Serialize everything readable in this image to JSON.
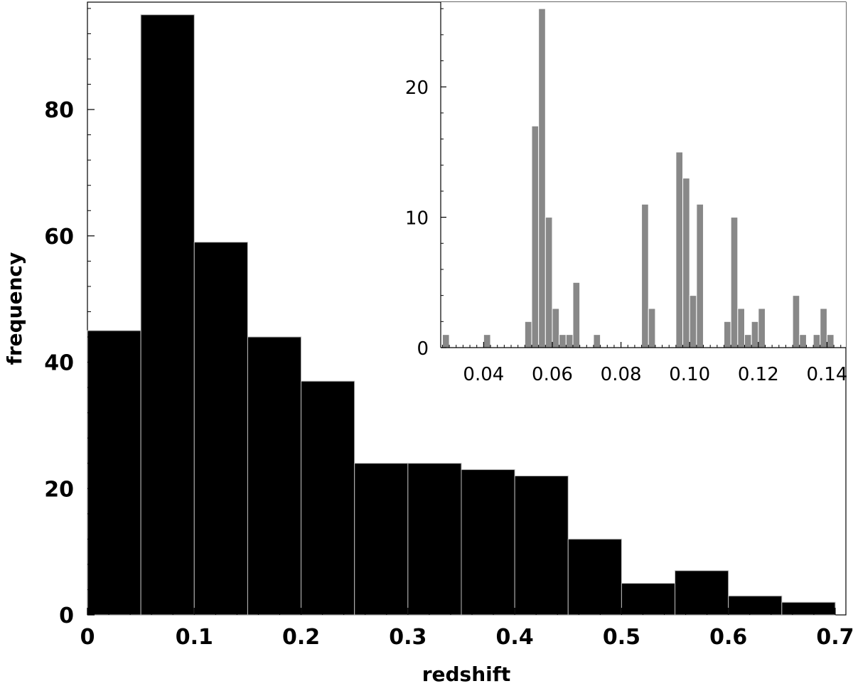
{
  "chart_data": [
    {
      "id": "main-histogram",
      "type": "bar",
      "title": "",
      "xlabel": "redshift",
      "ylabel": "frequency",
      "bin_edges": [
        0,
        0.05,
        0.1,
        0.15,
        0.2,
        0.25,
        0.3,
        0.35,
        0.4,
        0.45,
        0.5,
        0.55,
        0.6,
        0.65,
        0.7
      ],
      "values": [
        45,
        95,
        59,
        44,
        37,
        24,
        24,
        23,
        22,
        12,
        5,
        7,
        3,
        2
      ],
      "xlim": [
        0,
        0.71
      ],
      "ylim": [
        0,
        97
      ],
      "xticks": [
        0,
        0.1,
        0.2,
        0.3,
        0.4,
        0.5,
        0.6,
        0.7
      ],
      "xtick_labels": [
        "0",
        "0.1",
        "0.2",
        "0.3",
        "0.4",
        "0.5",
        "0.6",
        "0.7"
      ],
      "yticks": [
        0,
        20,
        40,
        60,
        80
      ],
      "ytick_labels": [
        "0",
        "20",
        "40",
        "60",
        "80"
      ],
      "bar_color": "#000000",
      "edge_color": "#bbbbbb"
    },
    {
      "id": "inset-histogram",
      "type": "bar",
      "title": "",
      "xlabel": "",
      "ylabel": "",
      "bin_width": 0.002,
      "bins": [
        {
          "x": 0.029,
          "value": 1
        },
        {
          "x": 0.041,
          "value": 1
        },
        {
          "x": 0.053,
          "value": 2
        },
        {
          "x": 0.055,
          "value": 17
        },
        {
          "x": 0.057,
          "value": 26
        },
        {
          "x": 0.059,
          "value": 10
        },
        {
          "x": 0.061,
          "value": 3
        },
        {
          "x": 0.063,
          "value": 1
        },
        {
          "x": 0.065,
          "value": 1
        },
        {
          "x": 0.067,
          "value": 5
        },
        {
          "x": 0.073,
          "value": 1
        },
        {
          "x": 0.087,
          "value": 11
        },
        {
          "x": 0.089,
          "value": 3
        },
        {
          "x": 0.097,
          "value": 15
        },
        {
          "x": 0.099,
          "value": 13
        },
        {
          "x": 0.101,
          "value": 4
        },
        {
          "x": 0.103,
          "value": 11
        },
        {
          "x": 0.111,
          "value": 2
        },
        {
          "x": 0.113,
          "value": 10
        },
        {
          "x": 0.115,
          "value": 3
        },
        {
          "x": 0.117,
          "value": 1
        },
        {
          "x": 0.119,
          "value": 2
        },
        {
          "x": 0.121,
          "value": 3
        },
        {
          "x": 0.131,
          "value": 4
        },
        {
          "x": 0.133,
          "value": 1
        },
        {
          "x": 0.137,
          "value": 1
        },
        {
          "x": 0.139,
          "value": 3
        },
        {
          "x": 0.141,
          "value": 1
        }
      ],
      "xlim": [
        0.0275,
        0.1455
      ],
      "ylim": [
        0,
        26.5
      ],
      "xticks": [
        0.04,
        0.06,
        0.08,
        0.1,
        0.12,
        0.14
      ],
      "xtick_labels": [
        "0.04",
        "0.06",
        "0.08",
        "0.10",
        "0.12",
        "0.14"
      ],
      "yticks": [
        0,
        10,
        20
      ],
      "ytick_labels": [
        "0",
        "10",
        "20"
      ],
      "bar_color": "#888888",
      "edge_color": "#ffffff"
    }
  ]
}
